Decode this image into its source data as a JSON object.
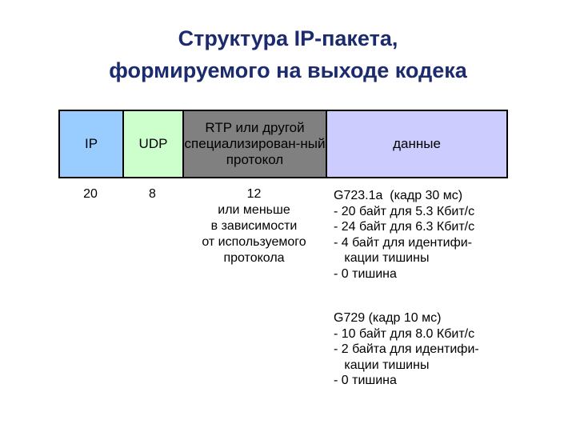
{
  "title": {
    "line1": "Структура IP-пакета,",
    "line2": "формируемого на выходе кодека"
  },
  "header": {
    "ip": "IP",
    "udp": "UDP",
    "rtp": "RTP или другой специализирован-ный протокол",
    "data": "данные"
  },
  "colors": {
    "ip": "#99ccff",
    "udp": "#ccffcc",
    "rtp": "#808080",
    "data": "#ccccff",
    "title": "#1c2a6e"
  },
  "sizes": {
    "ip": "20",
    "udp": "8",
    "rtp": [
      "12",
      "или меньше",
      "в зависимости",
      "от используемого",
      "протокола"
    ]
  },
  "data_notes": {
    "g723": [
      "G723.1a  (кадр 30 мс)",
      "- 20 байт для 5.3 Кбит/с",
      "- 24 байт для 6.3 Кбит/с",
      "- 4 байт для идентифи-",
      "   кации тишины",
      "- 0 тишина"
    ],
    "g729": [
      "G729 (кадр 10 мс)",
      "- 10 байт для 8.0 Кбит/с",
      "- 2 байта для идентифи-",
      "   кации тишины",
      "- 0 тишина"
    ]
  }
}
